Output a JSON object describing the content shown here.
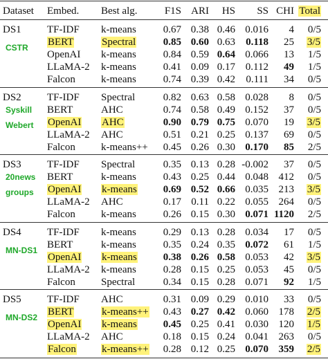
{
  "table": {
    "header": [
      "Dataset",
      "Embed.",
      "Best alg.",
      "F1S",
      "ARI",
      "HS",
      "SS",
      "CHI",
      "Total"
    ],
    "header_highlight": [
      8
    ],
    "groups": [
      {
        "dataset": "DS1",
        "sublabels": [
          "CSTR"
        ],
        "rows": [
          {
            "cells": [
              "TF-IDF",
              "k-means",
              "0.67",
              "0.38",
              "0.46",
              "0.016",
              "4",
              "0/5"
            ],
            "bold": [],
            "highlight": []
          },
          {
            "cells": [
              "BERT",
              "Spectral",
              "0.85",
              "0.60",
              "0.63",
              "0.118",
              "25",
              "3/5"
            ],
            "bold": [
              2,
              3,
              5
            ],
            "highlight": [
              0,
              1,
              7
            ]
          },
          {
            "cells": [
              "OpenAI",
              "k-means",
              "0.84",
              "0.59",
              "0.64",
              "0.066",
              "13",
              "1/5"
            ],
            "bold": [
              4
            ],
            "highlight": []
          },
          {
            "cells": [
              "LLaMA-2",
              "k-means",
              "0.41",
              "0.09",
              "0.17",
              "0.112",
              "49",
              "1/5"
            ],
            "bold": [
              6
            ],
            "highlight": []
          },
          {
            "cells": [
              "Falcon",
              "k-means",
              "0.74",
              "0.39",
              "0.42",
              "0.111",
              "34",
              "0/5"
            ],
            "bold": [],
            "highlight": []
          }
        ]
      },
      {
        "dataset": "DS2",
        "sublabels": [
          "Syskill",
          "Webert"
        ],
        "rows": [
          {
            "cells": [
              "TF-IDF",
              "Spectral",
              "0.82",
              "0.63",
              "0.58",
              "0.028",
              "8",
              "0/5"
            ],
            "bold": [],
            "highlight": []
          },
          {
            "cells": [
              "BERT",
              "AHC",
              "0.74",
              "0.58",
              "0.49",
              "0.152",
              "37",
              "0/5"
            ],
            "bold": [],
            "highlight": []
          },
          {
            "cells": [
              "OpenAI",
              "AHC",
              "0.90",
              "0.79",
              "0.75",
              "0.070",
              "19",
              "3/5"
            ],
            "bold": [
              2,
              3,
              4
            ],
            "highlight": [
              0,
              1,
              7
            ]
          },
          {
            "cells": [
              "LLaMA-2",
              "AHC",
              "0.51",
              "0.21",
              "0.25",
              "0.137",
              "69",
              "0/5"
            ],
            "bold": [],
            "highlight": []
          },
          {
            "cells": [
              "Falcon",
              "k-means++",
              "0.45",
              "0.26",
              "0.30",
              "0.170",
              "85",
              "2/5"
            ],
            "bold": [
              5,
              6
            ],
            "highlight": []
          }
        ]
      },
      {
        "dataset": "DS3",
        "sublabels": [
          "20news",
          "groups"
        ],
        "rows": [
          {
            "cells": [
              "TF-IDF",
              "Spectral",
              "0.35",
              "0.13",
              "0.28",
              "-0.002",
              "37",
              "0/5"
            ],
            "bold": [],
            "highlight": []
          },
          {
            "cells": [
              "BERT",
              "k-means",
              "0.43",
              "0.25",
              "0.44",
              "0.048",
              "412",
              "0/5"
            ],
            "bold": [],
            "highlight": []
          },
          {
            "cells": [
              "OpenAI",
              "k-means",
              "0.69",
              "0.52",
              "0.66",
              "0.035",
              "213",
              "3/5"
            ],
            "bold": [
              2,
              3,
              4
            ],
            "highlight": [
              0,
              1,
              7
            ]
          },
          {
            "cells": [
              "LLaMA-2",
              "AHC",
              "0.17",
              "0.11",
              "0.22",
              "0.055",
              "264",
              "0/5"
            ],
            "bold": [],
            "highlight": []
          },
          {
            "cells": [
              "Falcon",
              "k-means",
              "0.26",
              "0.15",
              "0.30",
              "0.071",
              "1120",
              "2/5"
            ],
            "bold": [
              5,
              6
            ],
            "highlight": []
          }
        ]
      },
      {
        "dataset": "DS4",
        "sublabels": [
          "MN-DS1"
        ],
        "rows": [
          {
            "cells": [
              "TF-IDF",
              "k-means",
              "0.29",
              "0.13",
              "0.28",
              "0.034",
              "17",
              "0/5"
            ],
            "bold": [],
            "highlight": []
          },
          {
            "cells": [
              "BERT",
              "k-means",
              "0.35",
              "0.24",
              "0.35",
              "0.072",
              "61",
              "1/5"
            ],
            "bold": [
              5
            ],
            "highlight": []
          },
          {
            "cells": [
              "OpenAI",
              "k-means",
              "0.38",
              "0.26",
              "0.58",
              "0.053",
              "42",
              "3/5"
            ],
            "bold": [
              2,
              3,
              4
            ],
            "highlight": [
              0,
              1,
              7
            ]
          },
          {
            "cells": [
              "LLaMA-2",
              "k-means",
              "0.28",
              "0.15",
              "0.25",
              "0.053",
              "45",
              "0/5"
            ],
            "bold": [],
            "highlight": []
          },
          {
            "cells": [
              "Falcon",
              "Spectral",
              "0.34",
              "0.15",
              "0.28",
              "0.071",
              "92",
              "1/5"
            ],
            "bold": [
              6
            ],
            "highlight": []
          }
        ]
      },
      {
        "dataset": "DS5",
        "sublabels": [
          "MN-DS2"
        ],
        "rows": [
          {
            "cells": [
              "TF-IDF",
              "AHC",
              "0.31",
              "0.09",
              "0.29",
              "0.010",
              "33",
              "0/5"
            ],
            "bold": [],
            "highlight": []
          },
          {
            "cells": [
              "BERT",
              "k-means++",
              "0.43",
              "0.27",
              "0.42",
              "0.060",
              "178",
              "2/5"
            ],
            "bold": [
              3,
              4
            ],
            "highlight": [
              0,
              1,
              7
            ]
          },
          {
            "cells": [
              "OpenAI",
              "k-means",
              "0.45",
              "0.25",
              "0.41",
              "0.030",
              "120",
              "1/5"
            ],
            "bold": [
              2
            ],
            "highlight": [
              0,
              1,
              7
            ]
          },
          {
            "cells": [
              "LLaMA-2",
              "AHC",
              "0.18",
              "0.15",
              "0.24",
              "0.041",
              "263",
              "0/5"
            ],
            "bold": [],
            "highlight": []
          },
          {
            "cells": [
              "Falcon",
              "k-means++",
              "0.28",
              "0.12",
              "0.25",
              "0.070",
              "359",
              "2/5"
            ],
            "bold": [
              5,
              6
            ],
            "highlight": [
              0,
              1,
              7
            ]
          }
        ]
      }
    ]
  }
}
